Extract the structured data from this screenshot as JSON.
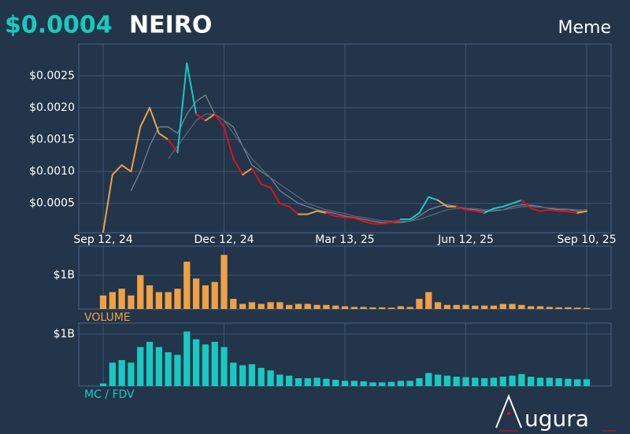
{
  "header": {
    "price": "$0.0004",
    "name": "NEIRO",
    "category": "Meme"
  },
  "logo_text": "ugura",
  "chart_data": [
    {
      "type": "line",
      "categories": [
        "Sep 12, 24",
        null,
        null,
        null,
        null,
        null,
        null,
        null,
        null,
        null,
        null,
        null,
        null,
        "Dec 12, 24",
        null,
        null,
        null,
        null,
        null,
        null,
        null,
        null,
        null,
        null,
        null,
        null,
        "Mar 13, 25",
        null,
        null,
        null,
        null,
        null,
        null,
        null,
        null,
        null,
        null,
        null,
        null,
        "Jun 12, 25",
        null,
        null,
        null,
        null,
        null,
        null,
        null,
        null,
        null,
        null,
        null,
        null,
        "Sep 10, 25"
      ],
      "series": [
        {
          "color": "#7d8898",
          "values": [
            null,
            null,
            null,
            0.0007,
            0.001,
            0.0014,
            0.0017,
            0.0017,
            0.0016,
            0.0019,
            0.0021,
            0.0022,
            0.0019,
            0.0018,
            0.0017,
            0.0014,
            0.0011,
            0.001,
            0.0009,
            0.0007,
            0.0006,
            0.0005,
            0.00045,
            0.0004,
            0.00037,
            0.00034,
            0.0003,
            0.00028,
            0.00025,
            0.00022,
            0.0002,
            0.0002,
            0.0002,
            0.00022,
            0.0003,
            0.0004,
            0.00045,
            0.00048,
            0.00045,
            0.00042,
            0.0004,
            0.00038,
            0.00038,
            0.0004,
            0.00045,
            0.00048,
            0.00047,
            0.00045,
            0.00042,
            0.0004,
            0.0004,
            0.00038,
            0.00037
          ]
        },
        {
          "color": "#5d6878",
          "values": [
            null,
            null,
            null,
            null,
            null,
            null,
            null,
            0.0012,
            0.0014,
            0.0016,
            0.0018,
            0.0019,
            0.0019,
            0.0018,
            0.0016,
            0.0014,
            0.0012,
            0.00105,
            0.0009,
            0.0008,
            0.0007,
            0.0006,
            0.0005,
            0.00045,
            0.0004,
            0.00037,
            0.00034,
            0.0003,
            0.00028,
            0.00025,
            0.00023,
            0.00022,
            0.00022,
            0.00022,
            0.00025,
            0.0003,
            0.00035,
            0.0004,
            0.00042,
            0.00042,
            0.00042,
            0.0004,
            0.0004,
            0.0004,
            0.00042,
            0.00045,
            0.00045,
            0.00044,
            0.00043,
            0.00042,
            0.00041,
            0.0004,
            0.0004
          ]
        },
        {
          "values": [
            5e-05,
            0.00095,
            0.0011,
            0.001,
            0.0017,
            0.002,
            0.0016,
            0.0015,
            0.0013,
            0.0027,
            0.0019,
            0.0018,
            0.0019,
            0.0017,
            0.0012,
            0.00095,
            0.00105,
            0.0008,
            0.00075,
            0.0005,
            0.00045,
            0.00033,
            0.00033,
            0.00038,
            0.00035,
            0.0003,
            0.00028,
            0.00027,
            0.00022,
            0.00018,
            0.00018,
            0.0002,
            0.00025,
            0.00025,
            0.00035,
            0.0006,
            0.00055,
            0.00045,
            0.00045,
            0.0004,
            0.00038,
            0.00035,
            0.00042,
            0.00045,
            0.0005,
            0.00055,
            0.00042,
            0.00038,
            0.0004,
            0.00038,
            0.00037,
            0.00035,
            0.00038
          ],
          "colors": [
            "#f0a045",
            "#f0a045",
            "#f0a045",
            "#f0a045",
            "#f0a045",
            "#f0a045",
            "#f0a045",
            "#f0a045",
            "#e0111d",
            "#19c9c0",
            "#19c9c0",
            "#e0111d",
            "#f0a045",
            "#e0111d",
            "#e0111d",
            "#e0111d",
            "#f0a045",
            "#e0111d",
            "#e0111d",
            "#e0111d",
            "#e0111d",
            "#e0111d",
            "#f0a045",
            "#f0a045",
            "#f0a045",
            "#e0111d",
            "#e0111d",
            "#e0111d",
            "#e0111d",
            "#e0111d",
            "#e0111d",
            "#e0111d",
            "#e0111d",
            "#19c9c0",
            "#19c9c0",
            "#19c9c0",
            "#19c9c0",
            "#f0a045",
            "#f0a045",
            "#e0111d",
            "#e0111d",
            "#e0111d",
            "#19c9c0",
            "#19c9c0",
            "#19c9c0",
            "#19c9c0",
            "#e0111d",
            "#e0111d",
            "#e0111d",
            "#e0111d",
            "#e0111d",
            "#e0111d",
            "#f0a045"
          ]
        }
      ],
      "ylim": [
        4e-05,
        0.003
      ],
      "yticks": [
        {
          "value": 0.0005,
          "label": "$0.0005"
        },
        {
          "value": 0.001,
          "label": "$0.0010"
        },
        {
          "value": 0.0015,
          "label": "$0.0015"
        },
        {
          "value": 0.002,
          "label": "$0.0020"
        },
        {
          "value": 0.0025,
          "label": "$0.0025"
        }
      ],
      "grid": true
    },
    {
      "type": "bar",
      "title": "VOLUME",
      "color": "#f0a045",
      "values": [
        400000000,
        500000000,
        600000000,
        400000000,
        1000000000,
        700000000,
        500000000,
        500000000,
        600000000,
        1400000000,
        900000000,
        700000000,
        800000000,
        1600000000,
        300000000,
        150000000,
        200000000,
        150000000,
        200000000,
        200000000,
        120000000,
        150000000,
        150000000,
        120000000,
        120000000,
        100000000,
        80000000,
        60000000,
        60000000,
        50000000,
        50000000,
        40000000,
        80000000,
        60000000,
        300000000,
        500000000,
        200000000,
        120000000,
        120000000,
        120000000,
        100000000,
        100000000,
        100000000,
        150000000,
        150000000,
        120000000,
        80000000,
        80000000,
        60000000,
        50000000,
        50000000,
        40000000,
        30000000
      ],
      "ylim": [
        0,
        1860000000
      ],
      "yticks": [
        {
          "value": 1000000000,
          "label": "$1B"
        }
      ],
      "grid": true
    },
    {
      "type": "bar",
      "title": "MC / FDV",
      "color": "#19c9c0",
      "values": [
        50000000,
        450000000,
        500000000,
        450000000,
        750000000,
        850000000,
        750000000,
        650000000,
        600000000,
        1050000000,
        900000000,
        800000000,
        850000000,
        750000000,
        450000000,
        400000000,
        420000000,
        350000000,
        300000000,
        220000000,
        200000000,
        150000000,
        150000000,
        160000000,
        140000000,
        120000000,
        100000000,
        100000000,
        90000000,
        70000000,
        70000000,
        80000000,
        100000000,
        100000000,
        150000000,
        250000000,
        220000000,
        200000000,
        180000000,
        170000000,
        160000000,
        150000000,
        160000000,
        180000000,
        200000000,
        230000000,
        180000000,
        160000000,
        160000000,
        150000000,
        140000000,
        130000000,
        130000000
      ],
      "ylim": [
        0,
        1210000000
      ],
      "yticks": [
        {
          "value": 1000000000,
          "label": "$1B"
        }
      ],
      "grid": true
    }
  ]
}
